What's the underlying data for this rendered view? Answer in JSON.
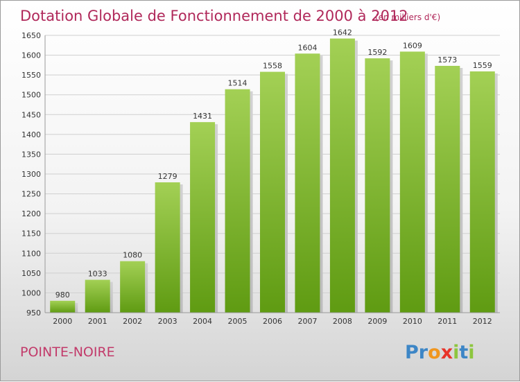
{
  "chart_data": {
    "type": "bar",
    "title": "Dotation Globale de Fonctionnement de 2000 à 2012",
    "subtitle": "(en milliers d'€)",
    "categories": [
      "2000",
      "2001",
      "2002",
      "2003",
      "2004",
      "2005",
      "2006",
      "2007",
      "2008",
      "2009",
      "2010",
      "2011",
      "2012"
    ],
    "values": [
      980,
      1033,
      1080,
      1279,
      1431,
      1514,
      1558,
      1604,
      1642,
      1592,
      1609,
      1573,
      1559
    ],
    "ylim": [
      950,
      1650
    ],
    "yticks": [
      950,
      1000,
      1050,
      1100,
      1150,
      1200,
      1250,
      1300,
      1350,
      1400,
      1450,
      1500,
      1550,
      1600,
      1650
    ],
    "xlabel": "",
    "ylabel": "",
    "grid": true,
    "bar_color": "#7fb532"
  },
  "commune": "POINTE-NOIRE",
  "logo": {
    "text": "Proxiti",
    "letter_colors": [
      "#3d86c6",
      "#3d86c6",
      "#f0961e",
      "#e8342a",
      "#8dc63f",
      "#3d86c6",
      "#8dc63f"
    ]
  }
}
